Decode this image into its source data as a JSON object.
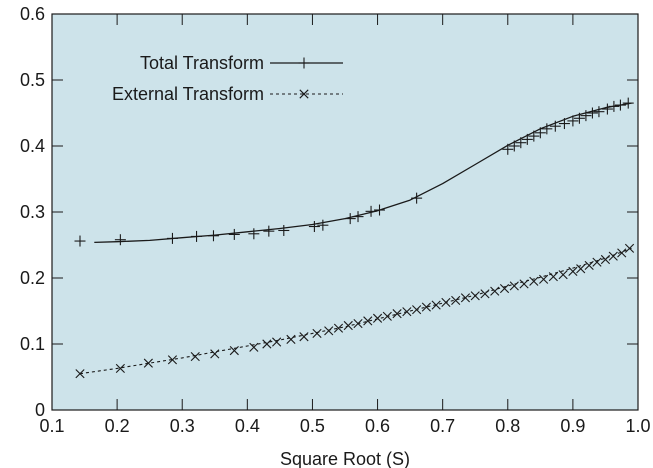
{
  "colors": {
    "plot_background": "#cde3ea",
    "axis": "#1a1a1a",
    "line": "#1a1a1a",
    "page": "#ffffff"
  },
  "chart_data": {
    "type": "line",
    "title": "",
    "xlabel": "Square Root (S)",
    "ylabel": "",
    "xlim": [
      0.1,
      1.0
    ],
    "ylim": [
      0,
      0.6
    ],
    "xticks": [
      0.1,
      0.2,
      0.3,
      0.4,
      0.5,
      0.6,
      0.7,
      0.8,
      0.9,
      1.0
    ],
    "xtick_labels": [
      "0.1",
      "0.2",
      "0.3",
      "0.4",
      "0.5",
      "0.6",
      "0.7",
      "0.8",
      "0.9",
      "1.0"
    ],
    "yticks": [
      0,
      0.1,
      0.2,
      0.3,
      0.4,
      0.5,
      0.6
    ],
    "ytick_labels": [
      "0",
      "0.1",
      "0.2",
      "0.3",
      "0.4",
      "0.5",
      "0.6"
    ],
    "grid": false,
    "legend": "top-left",
    "series": [
      {
        "name": "Total Transform",
        "line_style": "solid",
        "marker": "plus",
        "line": {
          "x": [
            0.165,
            0.2,
            0.25,
            0.3,
            0.35,
            0.4,
            0.45,
            0.5,
            0.55,
            0.6,
            0.65,
            0.7,
            0.75,
            0.8,
            0.85,
            0.9,
            0.95,
            0.99
          ],
          "y": [
            0.254,
            0.255,
            0.257,
            0.261,
            0.265,
            0.27,
            0.275,
            0.281,
            0.29,
            0.302,
            0.318,
            0.343,
            0.372,
            0.401,
            0.426,
            0.445,
            0.458,
            0.465
          ]
        },
        "markers": {
          "x": [
            0.143,
            0.205,
            0.285,
            0.322,
            0.348,
            0.38,
            0.41,
            0.433,
            0.456,
            0.503,
            0.516,
            0.558,
            0.57,
            0.59,
            0.603,
            0.66,
            0.8,
            0.81,
            0.82,
            0.83,
            0.84,
            0.85,
            0.86,
            0.873,
            0.887,
            0.9,
            0.91,
            0.92,
            0.93,
            0.94,
            0.953,
            0.963,
            0.973,
            0.985
          ],
          "y": [
            0.256,
            0.258,
            0.26,
            0.263,
            0.264,
            0.266,
            0.267,
            0.271,
            0.272,
            0.278,
            0.28,
            0.29,
            0.293,
            0.301,
            0.303,
            0.321,
            0.395,
            0.4,
            0.405,
            0.41,
            0.415,
            0.42,
            0.426,
            0.43,
            0.434,
            0.438,
            0.442,
            0.446,
            0.45,
            0.452,
            0.456,
            0.46,
            0.462,
            0.465
          ]
        }
      },
      {
        "name": "External Transform",
        "line_style": "dashed",
        "marker": "x",
        "line": {
          "x": [
            0.143,
            0.2,
            0.25,
            0.3,
            0.35,
            0.4,
            0.45,
            0.5,
            0.55,
            0.6,
            0.65,
            0.7,
            0.75,
            0.8,
            0.85,
            0.9,
            0.95,
            0.99
          ],
          "y": [
            0.055,
            0.063,
            0.071,
            0.079,
            0.088,
            0.097,
            0.106,
            0.116,
            0.126,
            0.138,
            0.15,
            0.162,
            0.174,
            0.188,
            0.201,
            0.215,
            0.23,
            0.245
          ]
        },
        "markers": {
          "x": [
            0.143,
            0.205,
            0.248,
            0.285,
            0.32,
            0.35,
            0.38,
            0.41,
            0.43,
            0.445,
            0.467,
            0.487,
            0.507,
            0.525,
            0.54,
            0.555,
            0.57,
            0.585,
            0.6,
            0.615,
            0.63,
            0.645,
            0.66,
            0.675,
            0.69,
            0.705,
            0.72,
            0.735,
            0.75,
            0.765,
            0.78,
            0.795,
            0.81,
            0.825,
            0.84,
            0.855,
            0.87,
            0.885,
            0.9,
            0.912,
            0.925,
            0.937,
            0.95,
            0.962,
            0.975,
            0.987
          ],
          "y": [
            0.055,
            0.063,
            0.071,
            0.076,
            0.081,
            0.085,
            0.09,
            0.095,
            0.1,
            0.103,
            0.107,
            0.111,
            0.116,
            0.12,
            0.124,
            0.128,
            0.131,
            0.135,
            0.139,
            0.142,
            0.146,
            0.149,
            0.152,
            0.156,
            0.159,
            0.163,
            0.166,
            0.17,
            0.173,
            0.176,
            0.18,
            0.184,
            0.188,
            0.191,
            0.195,
            0.198,
            0.202,
            0.205,
            0.21,
            0.214,
            0.219,
            0.224,
            0.228,
            0.233,
            0.238,
            0.245
          ]
        }
      }
    ]
  }
}
